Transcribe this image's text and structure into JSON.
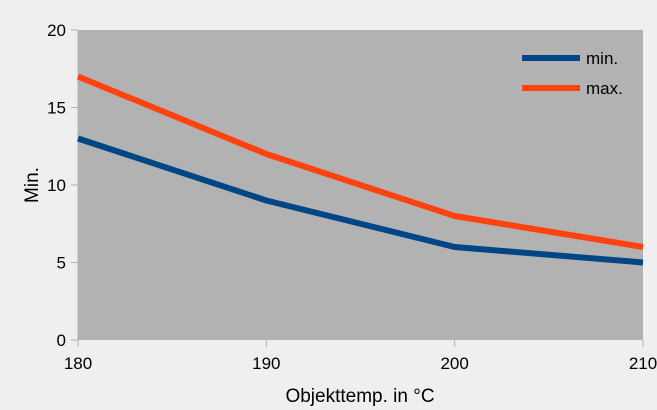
{
  "chart_data": {
    "type": "line",
    "title": "",
    "xlabel": "Objekttemp. in °C",
    "ylabel": "Min.",
    "x": [
      180,
      190,
      200,
      210
    ],
    "xlim": [
      180,
      210
    ],
    "ylim": [
      0,
      20
    ],
    "x_ticks": [
      "180",
      "190",
      "200",
      "210"
    ],
    "y_ticks": [
      "0",
      "5",
      "10",
      "15",
      "20"
    ],
    "grid": false,
    "legend_position": "top-right",
    "plot_background": "#b2b2b2",
    "chart_background": "#efefef",
    "series": [
      {
        "name": "min.",
        "values": [
          13,
          9,
          6,
          5
        ],
        "color": "#004586"
      },
      {
        "name": "max.",
        "values": [
          17,
          12,
          8,
          6
        ],
        "color": "#ff420e"
      }
    ]
  }
}
